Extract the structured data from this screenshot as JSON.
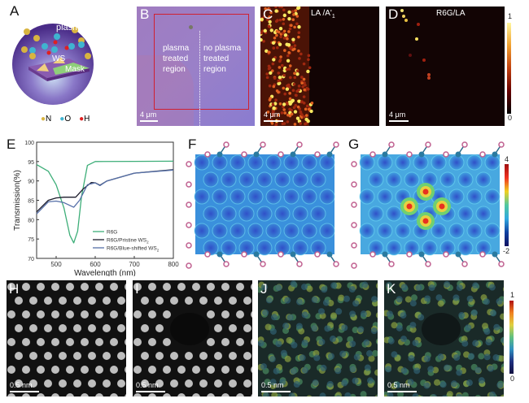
{
  "panels": {
    "A": {
      "label": "A",
      "plasma": "plasma",
      "ws": "WS",
      "mask": "Mask",
      "legend": [
        "N",
        "O",
        "H"
      ],
      "colors": {
        "N": "#d8b440",
        "O": "#3fb4d0",
        "H": "#e02020"
      }
    },
    "B": {
      "label": "B",
      "left_text": [
        "plasma",
        "treated",
        "region"
      ],
      "right_text": [
        "no plasma",
        "treated",
        "region"
      ],
      "scale": "4 μm"
    },
    "C": {
      "label": "C",
      "title": "LA /A'",
      "title_sub": "1",
      "scale": "4 μm"
    },
    "D": {
      "label": "D",
      "title": "R6G/LA",
      "scale": "4 μm",
      "colorbar": {
        "max": "1",
        "min": "0"
      }
    },
    "F": {
      "label": "F"
    },
    "G": {
      "label": "G",
      "colorbar": {
        "max": "4",
        "min": "-2"
      }
    },
    "H": {
      "label": "H",
      "scale": "0.5 nm"
    },
    "I": {
      "label": "I",
      "scale": "0.5 nm"
    },
    "J": {
      "label": "J",
      "scale": "0.5 nm"
    },
    "K": {
      "label": "K",
      "scale": "0.5 nm",
      "colorbar": {
        "max": "1",
        "min": "0"
      }
    }
  },
  "chart_data": {
    "panel_label": "E",
    "type": "line",
    "xlabel": "Wavelength (nm)",
    "ylabel": "Transmission(%)",
    "xlim": [
      450,
      800
    ],
    "ylim": [
      70,
      100
    ],
    "xticks": [
      "500",
      "600",
      "700",
      "800"
    ],
    "yticks": [
      "70",
      "75",
      "80",
      "85",
      "90",
      "95",
      "100"
    ],
    "legend_position": "bottom-right",
    "series": [
      {
        "name": "R6G",
        "color": "#3dae78",
        "x": [
          450,
          480,
          500,
          520,
          535,
          545,
          555,
          565,
          580,
          600,
          700,
          800
        ],
        "y": [
          94.2,
          92.5,
          89,
          83,
          76,
          74,
          77,
          86,
          94,
          95,
          95.05,
          95.1
        ]
      },
      {
        "name": "R6G/Pristine WS",
        "name_sub": "2",
        "color": "#1c1c2c",
        "x": [
          450,
          480,
          500,
          520,
          550,
          570,
          590,
          600,
          612,
          630,
          700,
          800
        ],
        "y": [
          82,
          85,
          85.6,
          85.8,
          85.8,
          88,
          89.6,
          89.5,
          88.9,
          90,
          92,
          92.9
        ]
      },
      {
        "name": "R6G/Blue-shifted WS",
        "name_sub": "2",
        "color": "#5670a8",
        "x": [
          450,
          480,
          500,
          520,
          545,
          560,
          580,
          600,
          612,
          630,
          700,
          800
        ],
        "y": [
          81.5,
          84.6,
          84.8,
          84.4,
          83.2,
          85,
          89,
          89.5,
          88.8,
          90,
          92,
          92.8
        ]
      }
    ]
  }
}
